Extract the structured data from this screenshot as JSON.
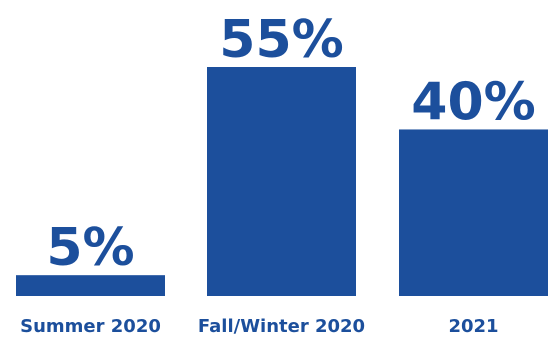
{
  "colors": {
    "bar": "#1c4f9c",
    "text": "#1c4f9c",
    "background": "#ffffff"
  },
  "chart_data": {
    "type": "bar",
    "categories": [
      "Summer 2020",
      "Fall/Winter 2020",
      "2021"
    ],
    "values": [
      5,
      55,
      40
    ],
    "data_labels": [
      "5%",
      "55%",
      "40%"
    ],
    "title": "",
    "xlabel": "",
    "ylabel": "",
    "ylim": [
      0,
      55
    ],
    "grid": false,
    "legend": "none"
  }
}
